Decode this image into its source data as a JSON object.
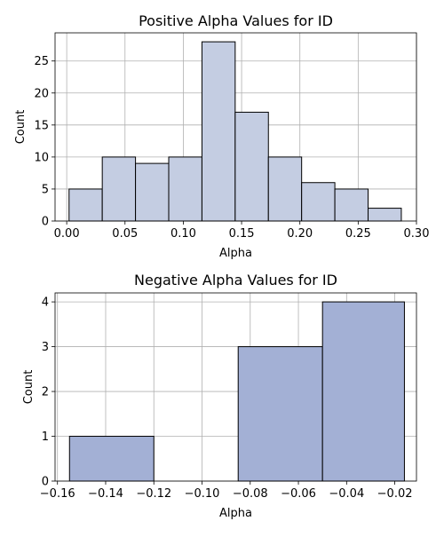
{
  "chart_data": [
    {
      "type": "bar",
      "title": "Positive Alpha Values for ID",
      "xlabel": "Alpha",
      "ylabel": "Count",
      "xlim": [
        -0.01,
        0.3
      ],
      "ylim": [
        0,
        29.4
      ],
      "xticks": [
        "0.00",
        "0.05",
        "0.10",
        "0.15",
        "0.20",
        "0.25",
        "0.30"
      ],
      "yticks": [
        "0",
        "5",
        "10",
        "15",
        "20",
        "25"
      ],
      "grid": true,
      "fill_color": "#c4cde2",
      "edge_color": "#000000",
      "bins": [
        {
          "x0": 0.002,
          "x1": 0.0305,
          "count": 5
        },
        {
          "x0": 0.0305,
          "x1": 0.059,
          "count": 10
        },
        {
          "x0": 0.059,
          "x1": 0.0875,
          "count": 9
        },
        {
          "x0": 0.0875,
          "x1": 0.116,
          "count": 10
        },
        {
          "x0": 0.116,
          "x1": 0.1445,
          "count": 28
        },
        {
          "x0": 0.1445,
          "x1": 0.173,
          "count": 17
        },
        {
          "x0": 0.173,
          "x1": 0.2015,
          "count": 10
        },
        {
          "x0": 0.2015,
          "x1": 0.23,
          "count": 6
        },
        {
          "x0": 0.23,
          "x1": 0.2585,
          "count": 5
        },
        {
          "x0": 0.2585,
          "x1": 0.287,
          "count": 2
        }
      ]
    },
    {
      "type": "bar",
      "title": "Negative Alpha Values for ID",
      "xlabel": "Alpha",
      "ylabel": "Count",
      "xlim": [
        -0.161,
        -0.011
      ],
      "ylim": [
        0,
        4.2
      ],
      "xticks": [
        "−0.16",
        "−0.14",
        "−0.12",
        "−0.10",
        "−0.08",
        "−0.06",
        "−0.04",
        "−0.02"
      ],
      "yticks": [
        "0",
        "1",
        "2",
        "3",
        "4"
      ],
      "grid": true,
      "fill_color": "#a3b0d5",
      "edge_color": "#000000",
      "bins": [
        {
          "x0": -0.155,
          "x1": -0.12,
          "count": 1
        },
        {
          "x0": -0.12,
          "x1": -0.085,
          "count": 0
        },
        {
          "x0": -0.085,
          "x1": -0.05,
          "count": 3
        },
        {
          "x0": -0.05,
          "x1": -0.016,
          "count": 4
        }
      ]
    }
  ]
}
